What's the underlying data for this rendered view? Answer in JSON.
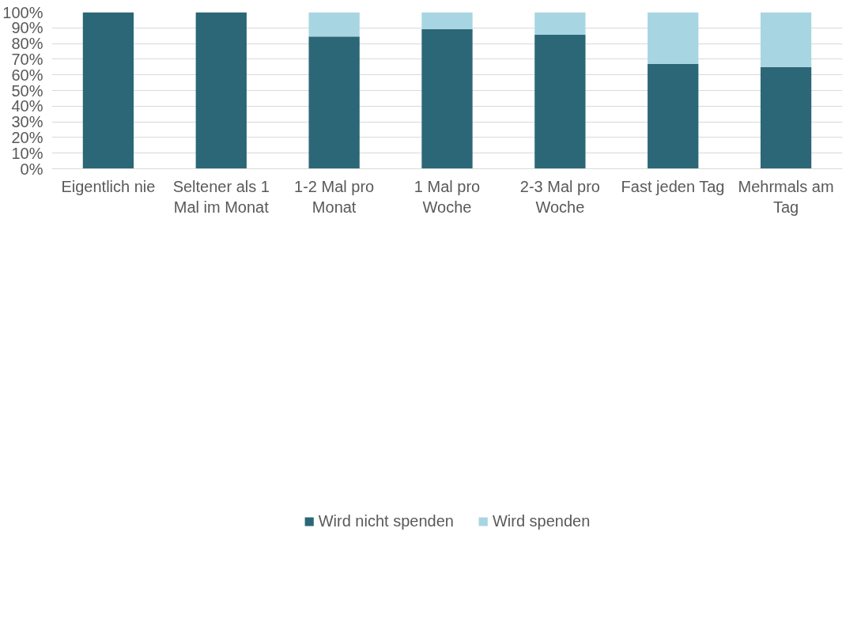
{
  "chart_data": {
    "type": "bar",
    "stacked": true,
    "categories": [
      "Eigentlich nie",
      "Seltener als 1 Mal im Monat",
      "1-2 Mal pro Monat",
      "1 Mal pro Woche",
      "2-3 Mal pro Woche",
      "Fast jeden Tag",
      "Mehrmals am Tag"
    ],
    "series": [
      {
        "name": "Wird nicht spenden",
        "color": "#2b6777",
        "values": [
          100,
          100,
          84.5,
          89.3,
          85.6,
          66.9,
          65.0
        ]
      },
      {
        "name": "Wird spenden",
        "color": "#a8d5e2",
        "values": [
          0,
          0,
          15.5,
          10.7,
          14.4,
          33.1,
          35.0
        ]
      }
    ],
    "ylim": [
      0,
      100
    ],
    "yticks": [
      {
        "value": 0,
        "label": "0%"
      },
      {
        "value": 10,
        "label": "10%"
      },
      {
        "value": 20,
        "label": "20%"
      },
      {
        "value": 30,
        "label": "30%"
      },
      {
        "value": 40,
        "label": "40%"
      },
      {
        "value": 50,
        "label": "50%"
      },
      {
        "value": 60,
        "label": "60%"
      },
      {
        "value": 70,
        "label": "70%"
      },
      {
        "value": 80,
        "label": "80%"
      },
      {
        "value": 90,
        "label": "90%"
      },
      {
        "value": 100,
        "label": "100%"
      }
    ],
    "grid": "y",
    "legend": "bottom"
  }
}
